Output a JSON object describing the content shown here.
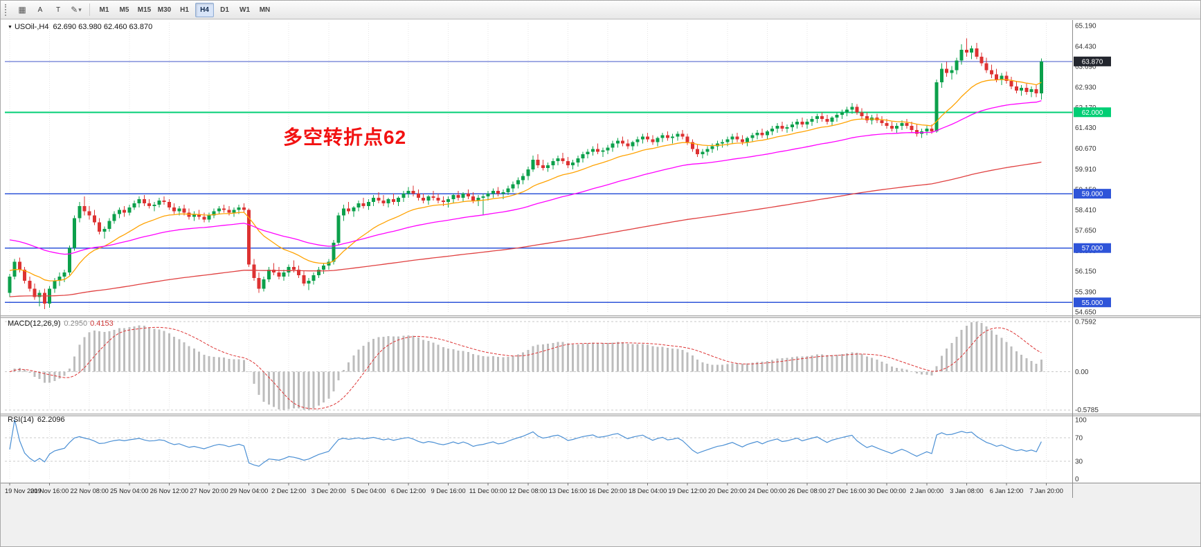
{
  "colors": {
    "bull": "#0ca04b",
    "bear": "#dd3232",
    "grid": "#e4e4e4",
    "histogram": "#bdbdbd",
    "signal": "#dd3333",
    "rsi_line": "#4a8fd4",
    "axis_text": "#333333",
    "level_dash": "#c8c8c8"
  },
  "toolbar": {
    "icons": {
      "grip": "⋮",
      "grid": "▦",
      "draw": "✎",
      "caret": "▾"
    },
    "tools": [
      {
        "id": "text-a",
        "label": "A"
      },
      {
        "id": "text-t",
        "label": "T"
      }
    ],
    "timeframes": [
      "M1",
      "M5",
      "M15",
      "M30",
      "H1",
      "H4",
      "D1",
      "W1",
      "MN"
    ],
    "active_timeframe": "H4"
  },
  "chart": {
    "marker": "▼",
    "symbol_period": "USOil-,H4",
    "ohlc_text": "62.690 63.980 62.460 63.870",
    "annotation": {
      "text": "多空转折点62",
      "color": "#f21111"
    },
    "price_axis_labels": [
      "65.190",
      "64.430",
      "63.690",
      "62.930",
      "62.170",
      "61.430",
      "60.670",
      "59.910",
      "59.150",
      "58.410",
      "57.650",
      "56.900",
      "56.150",
      "55.390",
      "54.650"
    ],
    "price_tags": [
      {
        "label": "63.870",
        "price": 63.87,
        "bg": "#23262e"
      },
      {
        "label": "62.000",
        "price": 62.0,
        "bg": "#00ce74"
      },
      {
        "label": "59.000",
        "price": 59.0,
        "bg": "#2e54d9"
      },
      {
        "label": "57.000",
        "price": 57.0,
        "bg": "#2e54d9"
      },
      {
        "label": "55.000",
        "price": 55.0,
        "bg": "#2e54d9"
      }
    ],
    "hlines": [
      {
        "price": 63.87,
        "color": "#4056c8",
        "width": 1
      },
      {
        "price": 62.0,
        "color": "#00ce74",
        "width": 2
      },
      {
        "price": 59.0,
        "color": "#2e54d9",
        "width": 1.4
      },
      {
        "price": 57.0,
        "color": "#2e54d9",
        "width": 1.4
      },
      {
        "price": 55.0,
        "color": "#2e54d9",
        "width": 1.4
      }
    ]
  },
  "macd": {
    "name": "MACD(12,26,9)",
    "value_hist": "0.2950",
    "value_signal": "0.4153",
    "range": [
      -0.5785,
      0.7592
    ],
    "params": {
      "fast": 12,
      "slow": 26,
      "signal": 9
    },
    "axis_labels": [
      {
        "label": "0.7592",
        "value": 0.7592
      },
      {
        "label": "0.00",
        "value": 0
      },
      {
        "label": "-0.5785",
        "value": -0.5785
      }
    ]
  },
  "rsi": {
    "name": "RSI(14)",
    "value": "62.2096",
    "period": 14,
    "levels": [
      70,
      30
    ],
    "axis_labels": [
      {
        "label": "100",
        "value": 100
      },
      {
        "label": "70",
        "value": 70
      },
      {
        "label": "30",
        "value": 30
      },
      {
        "label": "0",
        "value": 0
      }
    ]
  },
  "chart_data": {
    "type": "candlestick",
    "symbol": "USOil-",
    "timeframe": "H4",
    "current_ohlc": {
      "open": 62.69,
      "high": 63.98,
      "low": 62.46,
      "close": 63.87
    },
    "price_range": [
      54.65,
      65.19
    ],
    "time_labels": [
      "19 Nov 2019",
      "20 Nov 16:00",
      "22 Nov 08:00",
      "25 Nov 04:00",
      "26 Nov 12:00",
      "27 Nov 20:00",
      "29 Nov 04:00",
      "2 Dec 12:00",
      "3 Dec 20:00",
      "5 Dec 04:00",
      "6 Dec 12:00",
      "9 Dec 16:00",
      "11 Dec 00:00",
      "12 Dec 08:00",
      "13 Dec 16:00",
      "16 Dec 20:00",
      "18 Dec 04:00",
      "19 Dec 12:00",
      "20 Dec 20:00",
      "24 Dec 00:00",
      "26 Dec 08:00",
      "27 Dec 16:00",
      "30 Dec 00:00",
      "2 Jan 00:00",
      "3 Jan 08:00",
      "6 Jan 12:00",
      "7 Jan 20:00"
    ],
    "moving_averages": [
      {
        "name": "fast",
        "color": "#ffa200",
        "period": 18,
        "seed": 56.2
      },
      {
        "name": "medium",
        "color": "#ff00ff",
        "period": 55,
        "seed": 57.35
      },
      {
        "name": "slow",
        "color": "#e04040",
        "period": 200,
        "seed": 55.2
      }
    ],
    "candles": [
      [
        55.35,
        56.05,
        55.2,
        55.95
      ],
      [
        55.95,
        56.6,
        55.85,
        56.5
      ],
      [
        56.5,
        56.65,
        56.1,
        56.2
      ],
      [
        56.2,
        56.3,
        55.7,
        55.8
      ],
      [
        55.8,
        55.95,
        55.4,
        55.5
      ],
      [
        55.5,
        55.7,
        55.1,
        55.2
      ],
      [
        55.2,
        55.45,
        54.85,
        55.35
      ],
      [
        55.35,
        55.5,
        54.75,
        54.95
      ],
      [
        54.95,
        55.6,
        54.8,
        55.5
      ],
      [
        55.5,
        55.9,
        55.35,
        55.8
      ],
      [
        55.8,
        56.1,
        55.6,
        55.95
      ],
      [
        55.95,
        56.2,
        55.75,
        56.1
      ],
      [
        56.1,
        57.1,
        56.0,
        57.0
      ],
      [
        57.0,
        58.2,
        56.9,
        58.1
      ],
      [
        58.1,
        58.7,
        57.95,
        58.55
      ],
      [
        58.55,
        58.9,
        58.2,
        58.35
      ],
      [
        58.35,
        58.55,
        58.05,
        58.2
      ],
      [
        58.2,
        58.4,
        57.85,
        57.95
      ],
      [
        57.95,
        58.1,
        57.5,
        57.6
      ],
      [
        57.6,
        57.8,
        57.35,
        57.7
      ],
      [
        57.7,
        58.1,
        57.6,
        58.0
      ],
      [
        58.0,
        58.35,
        57.9,
        58.25
      ],
      [
        58.25,
        58.5,
        58.1,
        58.4
      ],
      [
        58.4,
        58.55,
        58.15,
        58.3
      ],
      [
        58.3,
        58.6,
        58.2,
        58.5
      ],
      [
        58.5,
        58.75,
        58.4,
        58.65
      ],
      [
        58.65,
        58.9,
        58.5,
        58.8
      ],
      [
        58.8,
        58.95,
        58.55,
        58.65
      ],
      [
        58.65,
        58.8,
        58.45,
        58.55
      ],
      [
        58.55,
        58.7,
        58.35,
        58.6
      ],
      [
        58.6,
        58.85,
        58.5,
        58.75
      ],
      [
        58.75,
        58.9,
        58.6,
        58.7
      ],
      [
        58.7,
        58.8,
        58.4,
        58.5
      ],
      [
        58.5,
        58.65,
        58.25,
        58.35
      ],
      [
        58.35,
        58.55,
        58.2,
        58.45
      ],
      [
        58.45,
        58.6,
        58.2,
        58.3
      ],
      [
        58.3,
        58.45,
        58.05,
        58.15
      ],
      [
        58.15,
        58.35,
        58.0,
        58.25
      ],
      [
        58.25,
        58.4,
        58.05,
        58.15
      ],
      [
        58.15,
        58.3,
        57.95,
        58.05
      ],
      [
        58.05,
        58.3,
        57.95,
        58.2
      ],
      [
        58.2,
        58.45,
        58.1,
        58.35
      ],
      [
        58.35,
        58.55,
        58.25,
        58.45
      ],
      [
        58.45,
        58.6,
        58.3,
        58.4
      ],
      [
        58.4,
        58.55,
        58.2,
        58.3
      ],
      [
        58.3,
        58.5,
        58.15,
        58.4
      ],
      [
        58.4,
        58.6,
        58.25,
        58.5
      ],
      [
        58.5,
        58.65,
        58.3,
        58.4
      ],
      [
        58.4,
        58.45,
        56.3,
        56.4
      ],
      [
        56.4,
        56.6,
        55.8,
        55.9
      ],
      [
        55.9,
        56.1,
        55.35,
        55.5
      ],
      [
        55.5,
        55.95,
        55.4,
        55.85
      ],
      [
        55.85,
        56.3,
        55.75,
        56.2
      ],
      [
        56.2,
        56.45,
        56.0,
        56.1
      ],
      [
        56.1,
        56.3,
        55.85,
        55.95
      ],
      [
        55.95,
        56.2,
        55.8,
        56.1
      ],
      [
        56.1,
        56.4,
        55.95,
        56.3
      ],
      [
        56.3,
        56.55,
        56.1,
        56.2
      ],
      [
        56.2,
        56.35,
        55.9,
        56.0
      ],
      [
        56.0,
        56.15,
        55.6,
        55.7
      ],
      [
        55.7,
        55.9,
        55.45,
        55.8
      ],
      [
        55.8,
        56.1,
        55.65,
        56.0
      ],
      [
        56.0,
        56.3,
        55.9,
        56.2
      ],
      [
        56.2,
        56.45,
        56.05,
        56.35
      ],
      [
        56.35,
        56.6,
        56.2,
        56.5
      ],
      [
        56.5,
        57.3,
        56.4,
        57.2
      ],
      [
        57.2,
        58.3,
        57.1,
        58.2
      ],
      [
        58.2,
        58.6,
        58.0,
        58.45
      ],
      [
        58.45,
        58.7,
        58.25,
        58.35
      ],
      [
        58.35,
        58.55,
        58.15,
        58.5
      ],
      [
        58.5,
        58.75,
        58.35,
        58.65
      ],
      [
        58.65,
        58.85,
        58.45,
        58.55
      ],
      [
        58.55,
        58.8,
        58.4,
        58.7
      ],
      [
        58.7,
        58.95,
        58.55,
        58.85
      ],
      [
        58.85,
        59.05,
        58.65,
        58.75
      ],
      [
        58.75,
        58.95,
        58.55,
        58.65
      ],
      [
        58.65,
        58.85,
        58.5,
        58.8
      ],
      [
        58.8,
        59.0,
        58.6,
        58.7
      ],
      [
        58.7,
        58.9,
        58.55,
        58.85
      ],
      [
        58.85,
        59.1,
        58.7,
        59.0
      ],
      [
        59.0,
        59.25,
        58.85,
        59.1
      ],
      [
        59.1,
        59.3,
        58.9,
        59.0
      ],
      [
        59.0,
        59.15,
        58.75,
        58.85
      ],
      [
        58.85,
        59.0,
        58.65,
        58.75
      ],
      [
        58.75,
        58.95,
        58.6,
        58.9
      ],
      [
        58.9,
        59.1,
        58.75,
        58.85
      ],
      [
        58.85,
        59.0,
        58.65,
        58.75
      ],
      [
        58.75,
        58.9,
        58.55,
        58.7
      ],
      [
        58.7,
        58.9,
        58.5,
        58.8
      ],
      [
        58.8,
        59.0,
        58.65,
        58.95
      ],
      [
        58.95,
        59.1,
        58.75,
        58.85
      ],
      [
        58.85,
        59.05,
        58.7,
        59.0
      ],
      [
        59.0,
        59.15,
        58.8,
        58.9
      ],
      [
        58.9,
        59.05,
        58.65,
        58.75
      ],
      [
        58.75,
        58.95,
        58.55,
        58.85
      ],
      [
        58.85,
        59.0,
        58.2,
        58.9
      ],
      [
        58.9,
        59.1,
        58.75,
        59.0
      ],
      [
        59.0,
        59.2,
        58.85,
        59.1
      ],
      [
        59.1,
        59.25,
        58.9,
        59.0
      ],
      [
        59.0,
        59.15,
        58.8,
        59.05
      ],
      [
        59.05,
        59.3,
        58.95,
        59.2
      ],
      [
        59.2,
        59.45,
        59.05,
        59.35
      ],
      [
        59.35,
        59.6,
        59.2,
        59.5
      ],
      [
        59.5,
        59.75,
        59.35,
        59.65
      ],
      [
        59.65,
        60.0,
        59.5,
        59.9
      ],
      [
        59.9,
        60.4,
        59.8,
        60.25
      ],
      [
        60.25,
        60.45,
        59.95,
        60.05
      ],
      [
        60.05,
        60.25,
        59.85,
        59.95
      ],
      [
        59.95,
        60.15,
        59.8,
        60.05
      ],
      [
        60.05,
        60.3,
        59.9,
        60.2
      ],
      [
        60.2,
        60.4,
        60.05,
        60.3
      ],
      [
        60.3,
        60.5,
        60.1,
        60.2
      ],
      [
        60.2,
        60.35,
        59.95,
        60.05
      ],
      [
        60.05,
        60.25,
        59.9,
        60.15
      ],
      [
        60.15,
        60.4,
        60.0,
        60.3
      ],
      [
        60.3,
        60.55,
        60.15,
        60.45
      ],
      [
        60.45,
        60.65,
        60.3,
        60.55
      ],
      [
        60.55,
        60.75,
        60.4,
        60.65
      ],
      [
        60.65,
        60.85,
        60.45,
        60.55
      ],
      [
        60.55,
        60.7,
        60.35,
        60.6
      ],
      [
        60.6,
        60.8,
        60.45,
        60.7
      ],
      [
        60.7,
        60.95,
        60.55,
        60.85
      ],
      [
        60.85,
        61.05,
        60.7,
        60.95
      ],
      [
        60.95,
        61.1,
        60.75,
        60.85
      ],
      [
        60.85,
        61.0,
        60.65,
        60.75
      ],
      [
        60.75,
        60.95,
        60.6,
        60.9
      ],
      [
        60.9,
        61.1,
        60.75,
        61.0
      ],
      [
        61.0,
        61.2,
        60.85,
        61.1
      ],
      [
        61.1,
        61.25,
        60.9,
        61.0
      ],
      [
        61.0,
        61.15,
        60.8,
        60.9
      ],
      [
        60.9,
        61.1,
        60.75,
        61.05
      ],
      [
        61.05,
        61.25,
        60.9,
        61.15
      ],
      [
        61.15,
        61.3,
        60.95,
        61.05
      ],
      [
        61.05,
        61.2,
        60.85,
        61.1
      ],
      [
        61.1,
        61.3,
        60.95,
        61.2
      ],
      [
        61.2,
        61.35,
        61.0,
        61.1
      ],
      [
        61.1,
        61.2,
        60.8,
        60.9
      ],
      [
        60.9,
        61.0,
        60.55,
        60.65
      ],
      [
        60.65,
        60.8,
        60.35,
        60.45
      ],
      [
        60.45,
        60.65,
        60.3,
        60.55
      ],
      [
        60.55,
        60.75,
        60.4,
        60.65
      ],
      [
        60.65,
        60.85,
        60.5,
        60.75
      ],
      [
        60.75,
        60.95,
        60.6,
        60.85
      ],
      [
        60.85,
        61.0,
        60.7,
        60.9
      ],
      [
        60.9,
        61.1,
        60.75,
        61.0
      ],
      [
        61.0,
        61.2,
        60.85,
        61.1
      ],
      [
        61.1,
        61.25,
        60.9,
        61.0
      ],
      [
        61.0,
        61.15,
        60.8,
        60.9
      ],
      [
        60.9,
        61.1,
        60.75,
        61.05
      ],
      [
        61.05,
        61.25,
        60.9,
        61.15
      ],
      [
        61.15,
        61.35,
        61.0,
        61.25
      ],
      [
        61.25,
        61.4,
        61.05,
        61.15
      ],
      [
        61.15,
        61.35,
        61.0,
        61.3
      ],
      [
        61.3,
        61.5,
        61.15,
        61.4
      ],
      [
        61.4,
        61.6,
        61.25,
        61.5
      ],
      [
        61.5,
        61.65,
        61.3,
        61.4
      ],
      [
        61.4,
        61.55,
        61.25,
        61.45
      ],
      [
        61.45,
        61.65,
        61.3,
        61.55
      ],
      [
        61.55,
        61.75,
        61.4,
        61.65
      ],
      [
        61.65,
        61.8,
        61.45,
        61.55
      ],
      [
        61.55,
        61.75,
        61.4,
        61.65
      ],
      [
        61.65,
        61.85,
        61.5,
        61.75
      ],
      [
        61.75,
        61.95,
        61.6,
        61.85
      ],
      [
        61.85,
        62.0,
        61.65,
        61.75
      ],
      [
        61.75,
        61.9,
        61.55,
        61.65
      ],
      [
        61.65,
        61.85,
        61.5,
        61.8
      ],
      [
        61.8,
        62.0,
        61.65,
        61.9
      ],
      [
        61.9,
        62.1,
        61.75,
        62.0
      ],
      [
        62.0,
        62.2,
        61.85,
        62.1
      ],
      [
        62.1,
        62.34,
        61.95,
        62.2
      ],
      [
        62.2,
        62.3,
        61.9,
        62.0
      ],
      [
        62.0,
        62.15,
        61.75,
        61.85
      ],
      [
        61.85,
        62.0,
        61.6,
        61.7
      ],
      [
        61.7,
        61.9,
        61.55,
        61.8
      ],
      [
        61.8,
        61.95,
        61.6,
        61.7
      ],
      [
        61.7,
        61.85,
        61.5,
        61.6
      ],
      [
        61.6,
        61.75,
        61.4,
        61.5
      ],
      [
        61.5,
        61.65,
        61.3,
        61.4
      ],
      [
        61.4,
        61.6,
        61.25,
        61.5
      ],
      [
        61.5,
        61.7,
        61.35,
        61.6
      ],
      [
        61.6,
        61.75,
        61.4,
        61.5
      ],
      [
        61.5,
        61.65,
        61.25,
        61.35
      ],
      [
        61.35,
        61.55,
        61.1,
        61.2
      ],
      [
        61.2,
        61.4,
        61.05,
        61.3
      ],
      [
        61.3,
        61.5,
        61.15,
        61.4
      ],
      [
        61.4,
        61.55,
        61.2,
        61.3
      ],
      [
        61.3,
        63.2,
        61.25,
        63.1
      ],
      [
        63.1,
        63.8,
        62.9,
        63.6
      ],
      [
        63.6,
        63.85,
        63.3,
        63.45
      ],
      [
        63.45,
        63.7,
        63.2,
        63.55
      ],
      [
        63.55,
        64.0,
        63.4,
        63.9
      ],
      [
        63.9,
        64.5,
        63.75,
        64.3
      ],
      [
        64.3,
        64.72,
        64.05,
        64.2
      ],
      [
        64.2,
        64.45,
        63.95,
        64.35
      ],
      [
        64.35,
        64.55,
        63.95,
        64.05
      ],
      [
        64.05,
        64.2,
        63.7,
        63.8
      ],
      [
        63.8,
        64.0,
        63.45,
        63.55
      ],
      [
        63.55,
        63.75,
        63.25,
        63.4
      ],
      [
        63.4,
        63.6,
        63.1,
        63.2
      ],
      [
        63.2,
        63.45,
        63.0,
        63.35
      ],
      [
        63.35,
        63.5,
        63.05,
        63.15
      ],
      [
        63.15,
        63.3,
        62.85,
        62.95
      ],
      [
        62.95,
        63.15,
        62.7,
        62.8
      ],
      [
        62.8,
        63.0,
        62.6,
        62.9
      ],
      [
        62.9,
        63.05,
        62.65,
        62.75
      ],
      [
        62.75,
        62.95,
        62.55,
        62.85
      ],
      [
        62.85,
        63.0,
        62.55,
        62.69
      ],
      [
        62.69,
        63.98,
        62.46,
        63.87
      ]
    ]
  }
}
